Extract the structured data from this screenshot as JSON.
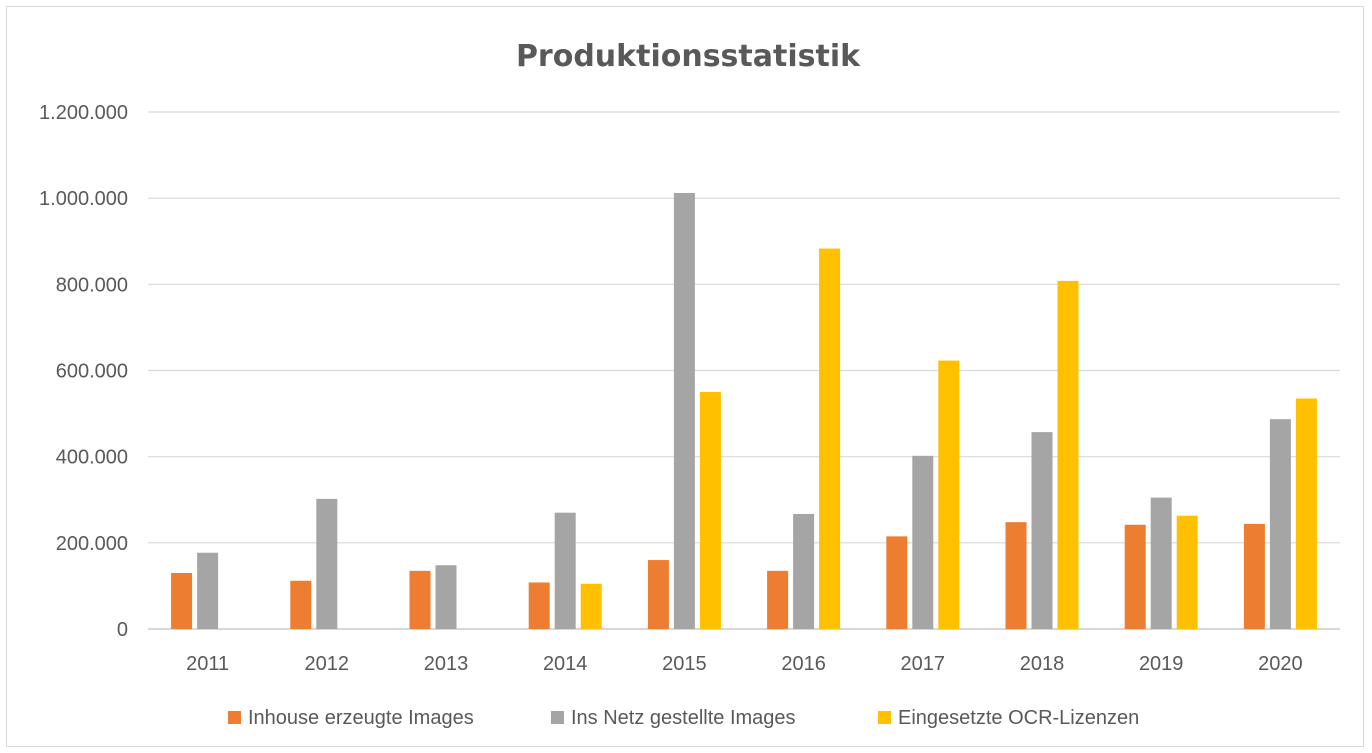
{
  "chart_data": {
    "type": "bar",
    "title": "Produktionsstatistik",
    "xlabel": "",
    "ylabel": "",
    "categories": [
      "2011",
      "2012",
      "2013",
      "2014",
      "2015",
      "2016",
      "2017",
      "2018",
      "2019",
      "2020"
    ],
    "series": [
      {
        "name": "Inhouse erzeugte Images",
        "color": "#ed7d31",
        "values": [
          130000,
          112000,
          135000,
          108000,
          160000,
          135000,
          215000,
          248000,
          242000,
          244000
        ]
      },
      {
        "name": "Ins Netz gestellte Images",
        "color": "#a5a5a5",
        "values": [
          177000,
          302000,
          148000,
          270000,
          1012000,
          267000,
          402000,
          457000,
          305000,
          487000
        ]
      },
      {
        "name": "Eingesetzte OCR-Lizenzen",
        "color": "#ffc000",
        "values": [
          null,
          null,
          null,
          105000,
          550000,
          883000,
          623000,
          808000,
          263000,
          535000
        ]
      }
    ],
    "yticks": [
      "0",
      "200.000",
      "400.000",
      "600.000",
      "800.000",
      "1.000.000",
      "1.200.000"
    ],
    "ylim": [
      0,
      1200000
    ],
    "grid": true,
    "legend_position": "bottom"
  }
}
